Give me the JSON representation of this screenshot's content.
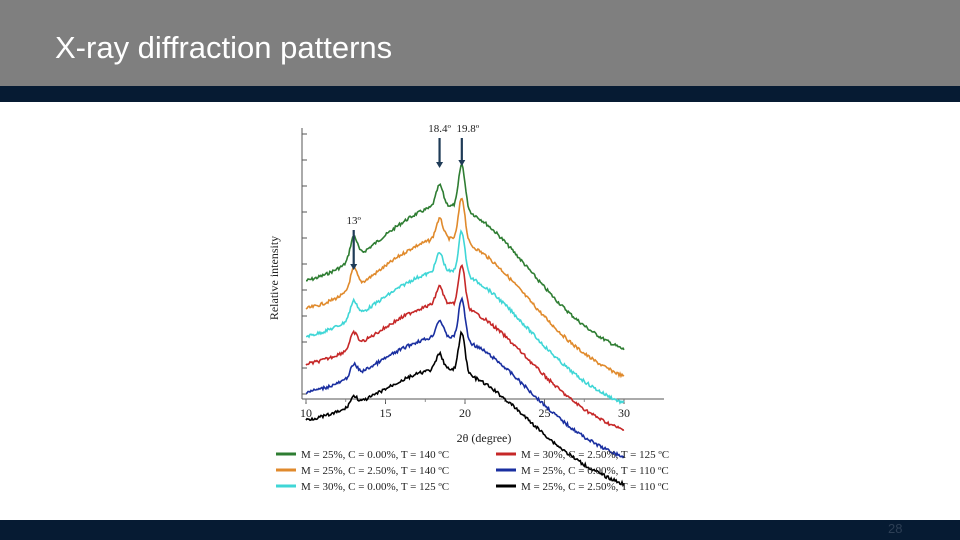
{
  "slide": {
    "title": "X-ray diffraction patterns",
    "page_number": "28"
  },
  "colors": {
    "title_bar": "#7f7f7f",
    "accent_bar": "#061b33"
  },
  "chart_data": {
    "type": "line",
    "title": "",
    "xlabel": "2θ (degree)",
    "ylabel": "Relative intensity",
    "xlim": [
      10,
      30
    ],
    "xticks": [
      "10",
      "15",
      "20",
      "25",
      "30"
    ],
    "y_tick_labels": "none",
    "grid": false,
    "legend_position": "bottom",
    "series": [
      {
        "name": "M = 25%, C = 0.00%, T = 140 ºC",
        "color": "#2e7d32",
        "peak_order": 1
      },
      {
        "name": "M = 25%, C = 2.50%, T = 140 ºC",
        "color": "#e08a2c",
        "peak_order": 2
      },
      {
        "name": "M = 30%, C = 0.00%, T = 125 ºC",
        "color": "#3fd6d6",
        "peak_order": 3
      },
      {
        "name": "M = 30%, C = 2.50%, T = 125 ºC",
        "color": "#c62828",
        "peak_order": 4
      },
      {
        "name": "M = 25%, C = 0.00%, T = 110 ºC",
        "color": "#1a2fa0",
        "peak_order": 5
      },
      {
        "name": "M = 25%, C = 2.50%, T = 110 ºC",
        "color": "#000000",
        "peak_order": 6
      }
    ],
    "annotations": [
      {
        "label": "13º",
        "x": 13
      },
      {
        "label": "18.4º",
        "x": 18.4
      },
      {
        "label": "19.8º",
        "x": 19.8
      }
    ]
  }
}
